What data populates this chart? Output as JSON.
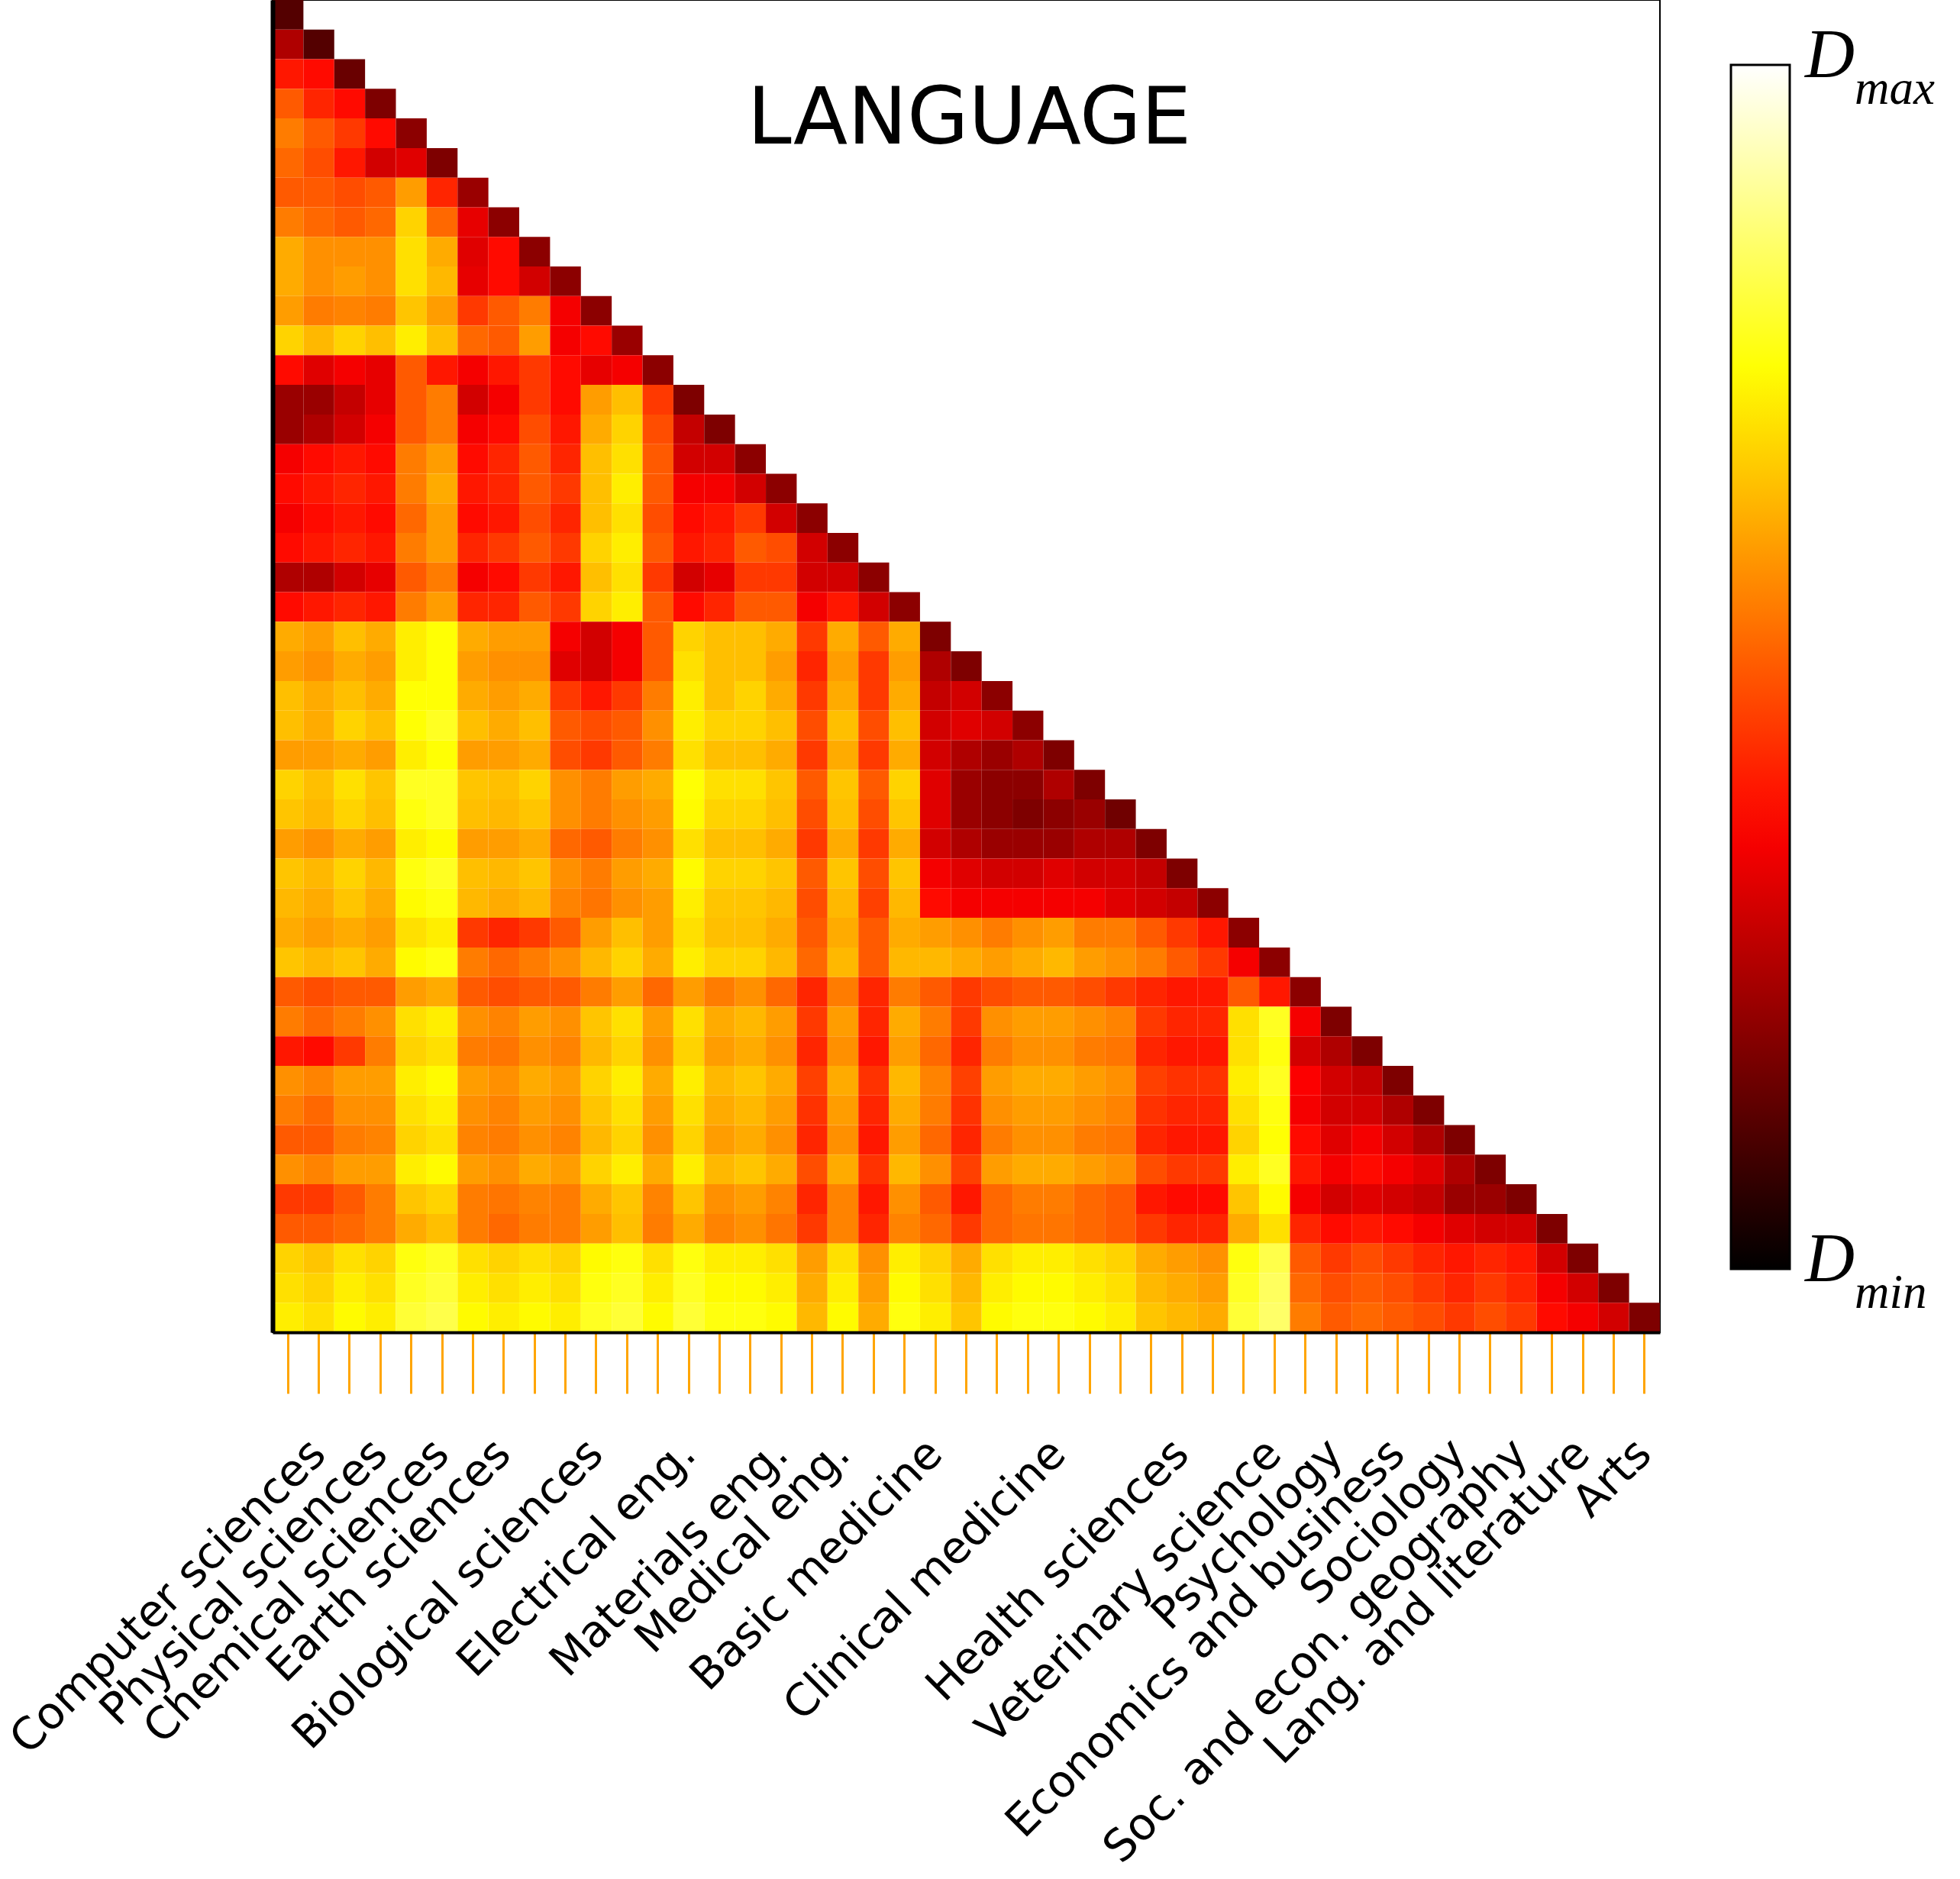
{
  "chart_data": {
    "type": "heatmap",
    "title": "LANGUAGE",
    "categories": [
      null,
      "Computer sciences",
      null,
      "Physical sciences",
      null,
      "Chemical sciences",
      null,
      "Earth sciences",
      null,
      null,
      "Biological sciences",
      null,
      null,
      "Electrical eng.",
      null,
      null,
      "Materials eng.",
      null,
      "Medical eng.",
      null,
      null,
      "Basic medicine",
      null,
      null,
      null,
      "Clinical medicine",
      null,
      null,
      null,
      "Health sciences",
      null,
      null,
      "Veterinary science",
      null,
      "Psychology",
      null,
      "Economics and business",
      null,
      "Sociology",
      null,
      "Soc. and econ. geography",
      null,
      "Lang. and literature",
      null,
      "Arts"
    ],
    "y_categories": [
      null,
      null,
      null,
      null,
      null,
      null,
      null,
      null,
      null,
      null,
      null,
      null,
      null,
      null,
      null,
      null,
      null,
      null,
      null,
      null,
      null,
      null,
      null,
      null,
      null,
      null,
      null,
      null,
      null,
      null,
      null,
      null,
      null,
      null,
      null,
      null,
      null,
      null,
      null,
      null,
      null,
      null,
      null,
      null,
      null
    ],
    "cells": [
      [
        0.12,
        null,
        null,
        null,
        null,
        null,
        null,
        null,
        null,
        null,
        null,
        null,
        null,
        null,
        null,
        null,
        null,
        null,
        null,
        null,
        null,
        null,
        null,
        null,
        null,
        null,
        null,
        null,
        null,
        null,
        null,
        null,
        null,
        null,
        null,
        null,
        null,
        null,
        null,
        null,
        null,
        null,
        null,
        null,
        null
      ],
      [
        0.25,
        0.12,
        null,
        null,
        null,
        null,
        null,
        null,
        null,
        null,
        null,
        null,
        null,
        null,
        null,
        null,
        null,
        null,
        null,
        null,
        null,
        null,
        null,
        null,
        null,
        null,
        null,
        null,
        null,
        null,
        null,
        null,
        null,
        null,
        null,
        null,
        null,
        null,
        null,
        null,
        null,
        null,
        null,
        null,
        null
      ],
      [
        0.4,
        0.38,
        0.15,
        null,
        null,
        null,
        null,
        null,
        null,
        null,
        null,
        null,
        null,
        null,
        null,
        null,
        null,
        null,
        null,
        null,
        null,
        null,
        null,
        null,
        null,
        null,
        null,
        null,
        null,
        null,
        null,
        null,
        null,
        null,
        null,
        null,
        null,
        null,
        null,
        null,
        null,
        null,
        null,
        null,
        null
      ],
      [
        0.5,
        0.42,
        0.38,
        0.18,
        null,
        null,
        null,
        null,
        null,
        null,
        null,
        null,
        null,
        null,
        null,
        null,
        null,
        null,
        null,
        null,
        null,
        null,
        null,
        null,
        null,
        null,
        null,
        null,
        null,
        null,
        null,
        null,
        null,
        null,
        null,
        null,
        null,
        null,
        null,
        null,
        null,
        null,
        null,
        null,
        null
      ],
      [
        0.55,
        0.5,
        0.45,
        0.38,
        0.2,
        null,
        null,
        null,
        null,
        null,
        null,
        null,
        null,
        null,
        null,
        null,
        null,
        null,
        null,
        null,
        null,
        null,
        null,
        null,
        null,
        null,
        null,
        null,
        null,
        null,
        null,
        null,
        null,
        null,
        null,
        null,
        null,
        null,
        null,
        null,
        null,
        null,
        null,
        null,
        null
      ],
      [
        0.52,
        0.48,
        0.4,
        0.3,
        0.32,
        0.18,
        null,
        null,
        null,
        null,
        null,
        null,
        null,
        null,
        null,
        null,
        null,
        null,
        null,
        null,
        null,
        null,
        null,
        null,
        null,
        null,
        null,
        null,
        null,
        null,
        null,
        null,
        null,
        null,
        null,
        null,
        null,
        null,
        null,
        null,
        null,
        null,
        null,
        null,
        null
      ],
      [
        0.5,
        0.5,
        0.48,
        0.5,
        0.6,
        0.42,
        0.22,
        null,
        null,
        null,
        null,
        null,
        null,
        null,
        null,
        null,
        null,
        null,
        null,
        null,
        null,
        null,
        null,
        null,
        null,
        null,
        null,
        null,
        null,
        null,
        null,
        null,
        null,
        null,
        null,
        null,
        null,
        null,
        null,
        null,
        null,
        null,
        null,
        null,
        null
      ],
      [
        0.55,
        0.52,
        0.5,
        0.52,
        0.68,
        0.52,
        0.33,
        0.2,
        null,
        null,
        null,
        null,
        null,
        null,
        null,
        null,
        null,
        null,
        null,
        null,
        null,
        null,
        null,
        null,
        null,
        null,
        null,
        null,
        null,
        null,
        null,
        null,
        null,
        null,
        null,
        null,
        null,
        null,
        null,
        null,
        null,
        null,
        null,
        null,
        null
      ],
      [
        0.62,
        0.58,
        0.58,
        0.58,
        0.7,
        0.62,
        0.32,
        0.38,
        0.2,
        null,
        null,
        null,
        null,
        null,
        null,
        null,
        null,
        null,
        null,
        null,
        null,
        null,
        null,
        null,
        null,
        null,
        null,
        null,
        null,
        null,
        null,
        null,
        null,
        null,
        null,
        null,
        null,
        null,
        null,
        null,
        null,
        null,
        null,
        null,
        null
      ],
      [
        0.62,
        0.58,
        0.6,
        0.58,
        0.7,
        0.64,
        0.33,
        0.38,
        0.3,
        0.2,
        null,
        null,
        null,
        null,
        null,
        null,
        null,
        null,
        null,
        null,
        null,
        null,
        null,
        null,
        null,
        null,
        null,
        null,
        null,
        null,
        null,
        null,
        null,
        null,
        null,
        null,
        null,
        null,
        null,
        null,
        null,
        null,
        null,
        null,
        null
      ],
      [
        0.6,
        0.55,
        0.56,
        0.55,
        0.66,
        0.6,
        0.45,
        0.5,
        0.55,
        0.35,
        0.2,
        null,
        null,
        null,
        null,
        null,
        null,
        null,
        null,
        null,
        null,
        null,
        null,
        null,
        null,
        null,
        null,
        null,
        null,
        null,
        null,
        null,
        null,
        null,
        null,
        null,
        null,
        null,
        null,
        null,
        null,
        null,
        null,
        null,
        null
      ],
      [
        0.68,
        0.64,
        0.68,
        0.65,
        0.72,
        0.65,
        0.52,
        0.5,
        0.6,
        0.35,
        0.38,
        0.22,
        null,
        null,
        null,
        null,
        null,
        null,
        null,
        null,
        null,
        null,
        null,
        null,
        null,
        null,
        null,
        null,
        null,
        null,
        null,
        null,
        null,
        null,
        null,
        null,
        null,
        null,
        null,
        null,
        null,
        null,
        null,
        null,
        null
      ],
      [
        0.38,
        0.32,
        0.35,
        0.33,
        0.5,
        0.4,
        0.35,
        0.4,
        0.45,
        0.38,
        0.33,
        0.35,
        0.2,
        null,
        null,
        null,
        null,
        null,
        null,
        null,
        null,
        null,
        null,
        null,
        null,
        null,
        null,
        null,
        null,
        null,
        null,
        null,
        null,
        null,
        null,
        null,
        null,
        null,
        null,
        null,
        null,
        null,
        null,
        null,
        null
      ],
      [
        0.22,
        0.22,
        0.28,
        0.33,
        0.5,
        0.55,
        0.3,
        0.35,
        0.45,
        0.38,
        0.6,
        0.65,
        0.45,
        0.18,
        null,
        null,
        null,
        null,
        null,
        null,
        null,
        null,
        null,
        null,
        null,
        null,
        null,
        null,
        null,
        null,
        null,
        null,
        null,
        null,
        null,
        null,
        null,
        null,
        null,
        null,
        null,
        null,
        null,
        null,
        null
      ],
      [
        0.22,
        0.25,
        0.3,
        0.35,
        0.5,
        0.55,
        0.35,
        0.38,
        0.48,
        0.4,
        0.62,
        0.68,
        0.48,
        0.28,
        0.18,
        null,
        null,
        null,
        null,
        null,
        null,
        null,
        null,
        null,
        null,
        null,
        null,
        null,
        null,
        null,
        null,
        null,
        null,
        null,
        null,
        null,
        null,
        null,
        null,
        null,
        null,
        null,
        null,
        null,
        null
      ],
      [
        0.35,
        0.38,
        0.4,
        0.38,
        0.55,
        0.6,
        0.38,
        0.42,
        0.5,
        0.42,
        0.65,
        0.7,
        0.5,
        0.3,
        0.3,
        0.2,
        null,
        null,
        null,
        null,
        null,
        null,
        null,
        null,
        null,
        null,
        null,
        null,
        null,
        null,
        null,
        null,
        null,
        null,
        null,
        null,
        null,
        null,
        null,
        null,
        null,
        null,
        null,
        null,
        null
      ],
      [
        0.38,
        0.4,
        0.42,
        0.4,
        0.55,
        0.62,
        0.4,
        0.42,
        0.5,
        0.45,
        0.65,
        0.72,
        0.5,
        0.35,
        0.35,
        0.3,
        0.2,
        null,
        null,
        null,
        null,
        null,
        null,
        null,
        null,
        null,
        null,
        null,
        null,
        null,
        null,
        null,
        null,
        null,
        null,
        null,
        null,
        null,
        null,
        null,
        null,
        null,
        null,
        null,
        null
      ],
      [
        0.35,
        0.38,
        0.4,
        0.38,
        0.52,
        0.6,
        0.38,
        0.4,
        0.48,
        0.42,
        0.65,
        0.7,
        0.48,
        0.38,
        0.4,
        0.45,
        0.3,
        0.2,
        null,
        null,
        null,
        null,
        null,
        null,
        null,
        null,
        null,
        null,
        null,
        null,
        null,
        null,
        null,
        null,
        null,
        null,
        null,
        null,
        null,
        null,
        null,
        null,
        null,
        null,
        null
      ],
      [
        0.38,
        0.4,
        0.42,
        0.4,
        0.55,
        0.6,
        0.42,
        0.45,
        0.5,
        0.45,
        0.68,
        0.72,
        0.5,
        0.4,
        0.42,
        0.5,
        0.48,
        0.3,
        0.2,
        null,
        null,
        null,
        null,
        null,
        null,
        null,
        null,
        null,
        null,
        null,
        null,
        null,
        null,
        null,
        null,
        null,
        null,
        null,
        null,
        null,
        null,
        null,
        null,
        null,
        null
      ],
      [
        0.25,
        0.25,
        0.3,
        0.33,
        0.5,
        0.55,
        0.35,
        0.38,
        0.45,
        0.4,
        0.65,
        0.7,
        0.45,
        0.3,
        0.33,
        0.45,
        0.45,
        0.3,
        0.3,
        0.2,
        null,
        null,
        null,
        null,
        null,
        null,
        null,
        null,
        null,
        null,
        null,
        null,
        null,
        null,
        null,
        null,
        null,
        null,
        null,
        null,
        null,
        null,
        null,
        null,
        null
      ],
      [
        0.38,
        0.4,
        0.42,
        0.4,
        0.55,
        0.6,
        0.42,
        0.42,
        0.5,
        0.45,
        0.68,
        0.72,
        0.5,
        0.38,
        0.42,
        0.5,
        0.5,
        0.35,
        0.4,
        0.3,
        0.2,
        null,
        null,
        null,
        null,
        null,
        null,
        null,
        null,
        null,
        null,
        null,
        null,
        null,
        null,
        null,
        null,
        null,
        null,
        null,
        null,
        null,
        null,
        null,
        null
      ],
      [
        0.62,
        0.6,
        0.65,
        0.62,
        0.72,
        0.75,
        0.62,
        0.6,
        0.6,
        0.35,
        0.3,
        0.35,
        0.5,
        0.68,
        0.65,
        0.65,
        0.62,
        0.45,
        0.62,
        0.5,
        0.62,
        0.18,
        null,
        null,
        null,
        null,
        null,
        null,
        null,
        null,
        null,
        null,
        null,
        null,
        null,
        null,
        null,
        null,
        null,
        null,
        null,
        null,
        null,
        null,
        null
      ],
      [
        0.6,
        0.58,
        0.62,
        0.6,
        0.72,
        0.75,
        0.6,
        0.58,
        0.58,
        0.32,
        0.3,
        0.35,
        0.5,
        0.7,
        0.65,
        0.65,
        0.6,
        0.42,
        0.6,
        0.45,
        0.6,
        0.25,
        0.18,
        null,
        null,
        null,
        null,
        null,
        null,
        null,
        null,
        null,
        null,
        null,
        null,
        null,
        null,
        null,
        null,
        null,
        null,
        null,
        null,
        null,
        null
      ],
      [
        0.65,
        0.62,
        0.65,
        0.62,
        0.75,
        0.75,
        0.62,
        0.6,
        0.62,
        0.45,
        0.4,
        0.45,
        0.55,
        0.72,
        0.65,
        0.68,
        0.62,
        0.45,
        0.62,
        0.45,
        0.62,
        0.28,
        0.3,
        0.2,
        null,
        null,
        null,
        null,
        null,
        null,
        null,
        null,
        null,
        null,
        null,
        null,
        null,
        null,
        null,
        null,
        null,
        null,
        null,
        null,
        null
      ],
      [
        0.65,
        0.62,
        0.68,
        0.65,
        0.75,
        0.78,
        0.65,
        0.62,
        0.65,
        0.5,
        0.48,
        0.5,
        0.58,
        0.72,
        0.68,
        0.68,
        0.65,
        0.48,
        0.65,
        0.48,
        0.65,
        0.3,
        0.32,
        0.3,
        0.2,
        null,
        null,
        null,
        null,
        null,
        null,
        null,
        null,
        null,
        null,
        null,
        null,
        null,
        null,
        null,
        null,
        null,
        null,
        null,
        null
      ],
      [
        0.6,
        0.6,
        0.62,
        0.6,
        0.72,
        0.75,
        0.6,
        0.6,
        0.62,
        0.48,
        0.45,
        0.5,
        0.55,
        0.7,
        0.65,
        0.65,
        0.62,
        0.45,
        0.62,
        0.45,
        0.62,
        0.3,
        0.25,
        0.22,
        0.25,
        0.18,
        null,
        null,
        null,
        null,
        null,
        null,
        null,
        null,
        null,
        null,
        null,
        null,
        null,
        null,
        null,
        null,
        null,
        null,
        null
      ],
      [
        0.68,
        0.65,
        0.7,
        0.66,
        0.78,
        0.78,
        0.66,
        0.65,
        0.68,
        0.58,
        0.55,
        0.6,
        0.62,
        0.75,
        0.7,
        0.7,
        0.66,
        0.5,
        0.66,
        0.5,
        0.68,
        0.32,
        0.22,
        0.2,
        0.2,
        0.25,
        0.18,
        null,
        null,
        null,
        null,
        null,
        null,
        null,
        null,
        null,
        null,
        null,
        null,
        null,
        null,
        null,
        null,
        null,
        null
      ],
      [
        0.66,
        0.64,
        0.68,
        0.65,
        0.76,
        0.78,
        0.65,
        0.64,
        0.66,
        0.58,
        0.55,
        0.58,
        0.6,
        0.74,
        0.68,
        0.68,
        0.65,
        0.48,
        0.65,
        0.48,
        0.66,
        0.32,
        0.22,
        0.2,
        0.18,
        0.2,
        0.22,
        0.16,
        null,
        null,
        null,
        null,
        null,
        null,
        null,
        null,
        null,
        null,
        null,
        null,
        null,
        null,
        null,
        null,
        null
      ],
      [
        0.6,
        0.58,
        0.62,
        0.6,
        0.72,
        0.74,
        0.6,
        0.6,
        0.62,
        0.52,
        0.5,
        0.55,
        0.58,
        0.7,
        0.65,
        0.65,
        0.62,
        0.45,
        0.62,
        0.45,
        0.62,
        0.3,
        0.25,
        0.22,
        0.22,
        0.22,
        0.25,
        0.25,
        0.18,
        null,
        null,
        null,
        null,
        null,
        null,
        null,
        null,
        null,
        null,
        null,
        null,
        null,
        null,
        null,
        null
      ],
      [
        0.66,
        0.64,
        0.68,
        0.64,
        0.76,
        0.78,
        0.65,
        0.64,
        0.66,
        0.58,
        0.55,
        0.6,
        0.62,
        0.74,
        0.68,
        0.68,
        0.66,
        0.5,
        0.66,
        0.48,
        0.66,
        0.35,
        0.32,
        0.3,
        0.3,
        0.32,
        0.3,
        0.3,
        0.28,
        0.18,
        null,
        null,
        null,
        null,
        null,
        null,
        null,
        null,
        null,
        null,
        null,
        null,
        null,
        null,
        null
      ],
      [
        0.64,
        0.62,
        0.66,
        0.62,
        0.74,
        0.76,
        0.64,
        0.62,
        0.64,
        0.56,
        0.54,
        0.58,
        0.6,
        0.72,
        0.66,
        0.66,
        0.64,
        0.48,
        0.64,
        0.46,
        0.64,
        0.38,
        0.35,
        0.35,
        0.35,
        0.35,
        0.35,
        0.32,
        0.3,
        0.28,
        0.2,
        null,
        null,
        null,
        null,
        null,
        null,
        null,
        null,
        null,
        null,
        null,
        null,
        null,
        null
      ],
      [
        0.62,
        0.6,
        0.62,
        0.6,
        0.7,
        0.72,
        0.45,
        0.42,
        0.45,
        0.5,
        0.6,
        0.65,
        0.6,
        0.7,
        0.65,
        0.65,
        0.62,
        0.5,
        0.62,
        0.5,
        0.62,
        0.6,
        0.58,
        0.55,
        0.58,
        0.6,
        0.55,
        0.55,
        0.5,
        0.45,
        0.4,
        0.2,
        null,
        null,
        null,
        null,
        null,
        null,
        null,
        null,
        null,
        null,
        null,
        null,
        null
      ],
      [
        0.66,
        0.64,
        0.66,
        0.62,
        0.74,
        0.76,
        0.55,
        0.52,
        0.55,
        0.58,
        0.64,
        0.68,
        0.62,
        0.72,
        0.68,
        0.68,
        0.64,
        0.52,
        0.64,
        0.5,
        0.64,
        0.64,
        0.62,
        0.6,
        0.62,
        0.64,
        0.6,
        0.58,
        0.55,
        0.5,
        0.45,
        0.35,
        0.2,
        null,
        null,
        null,
        null,
        null,
        null,
        null,
        null,
        null,
        null,
        null,
        null
      ],
      [
        0.5,
        0.48,
        0.5,
        0.5,
        0.6,
        0.62,
        0.5,
        0.48,
        0.5,
        0.5,
        0.55,
        0.6,
        0.52,
        0.6,
        0.55,
        0.58,
        0.52,
        0.42,
        0.55,
        0.42,
        0.55,
        0.5,
        0.45,
        0.48,
        0.5,
        0.5,
        0.48,
        0.45,
        0.42,
        0.4,
        0.4,
        0.5,
        0.4,
        0.2,
        null,
        null,
        null,
        null,
        null,
        null,
        null,
        null,
        null,
        null,
        null
      ],
      [
        0.55,
        0.52,
        0.55,
        0.58,
        0.7,
        0.72,
        0.58,
        0.56,
        0.6,
        0.58,
        0.66,
        0.7,
        0.6,
        0.7,
        0.62,
        0.64,
        0.6,
        0.45,
        0.6,
        0.42,
        0.62,
        0.55,
        0.45,
        0.58,
        0.6,
        0.6,
        0.58,
        0.56,
        0.45,
        0.42,
        0.42,
        0.7,
        0.78,
        0.35,
        0.18,
        null,
        null,
        null,
        null,
        null,
        null,
        null,
        null,
        null,
        null
      ],
      [
        0.4,
        0.38,
        0.45,
        0.55,
        0.68,
        0.7,
        0.55,
        0.54,
        0.58,
        0.56,
        0.64,
        0.68,
        0.58,
        0.68,
        0.6,
        0.62,
        0.58,
        0.42,
        0.58,
        0.4,
        0.6,
        0.52,
        0.42,
        0.55,
        0.58,
        0.58,
        0.55,
        0.54,
        0.42,
        0.4,
        0.4,
        0.7,
        0.76,
        0.3,
        0.25,
        0.18,
        null,
        null,
        null,
        null,
        null,
        null,
        null,
        null,
        null
      ],
      [
        0.58,
        0.56,
        0.6,
        0.6,
        0.72,
        0.74,
        0.6,
        0.58,
        0.62,
        0.6,
        0.68,
        0.72,
        0.62,
        0.72,
        0.64,
        0.66,
        0.62,
        0.46,
        0.62,
        0.44,
        0.64,
        0.56,
        0.46,
        0.6,
        0.62,
        0.62,
        0.6,
        0.58,
        0.46,
        0.44,
        0.44,
        0.72,
        0.78,
        0.36,
        0.3,
        0.28,
        0.18,
        null,
        null,
        null,
        null,
        null,
        null,
        null,
        null
      ],
      [
        0.55,
        0.52,
        0.58,
        0.58,
        0.7,
        0.72,
        0.58,
        0.56,
        0.6,
        0.58,
        0.66,
        0.7,
        0.6,
        0.7,
        0.62,
        0.64,
        0.6,
        0.44,
        0.6,
        0.42,
        0.62,
        0.55,
        0.44,
        0.58,
        0.6,
        0.6,
        0.58,
        0.56,
        0.44,
        0.42,
        0.42,
        0.7,
        0.76,
        0.35,
        0.3,
        0.3,
        0.25,
        0.18,
        null,
        null,
        null,
        null,
        null,
        null,
        null
      ],
      [
        0.5,
        0.5,
        0.55,
        0.56,
        0.68,
        0.7,
        0.56,
        0.55,
        0.58,
        0.56,
        0.64,
        0.68,
        0.58,
        0.68,
        0.6,
        0.62,
        0.58,
        0.42,
        0.58,
        0.4,
        0.6,
        0.52,
        0.42,
        0.55,
        0.58,
        0.58,
        0.55,
        0.54,
        0.42,
        0.4,
        0.4,
        0.68,
        0.75,
        0.38,
        0.32,
        0.35,
        0.3,
        0.25,
        0.18,
        null,
        null,
        null,
        null,
        null,
        null
      ],
      [
        0.58,
        0.56,
        0.6,
        0.6,
        0.72,
        0.74,
        0.6,
        0.58,
        0.62,
        0.6,
        0.68,
        0.72,
        0.62,
        0.72,
        0.64,
        0.66,
        0.62,
        0.48,
        0.62,
        0.44,
        0.64,
        0.58,
        0.46,
        0.6,
        0.62,
        0.62,
        0.6,
        0.58,
        0.48,
        0.45,
        0.45,
        0.72,
        0.78,
        0.4,
        0.35,
        0.38,
        0.35,
        0.32,
        0.25,
        0.18,
        null,
        null,
        null,
        null,
        null
      ],
      [
        0.45,
        0.45,
        0.5,
        0.55,
        0.66,
        0.68,
        0.55,
        0.54,
        0.56,
        0.55,
        0.62,
        0.66,
        0.56,
        0.66,
        0.58,
        0.6,
        0.56,
        0.42,
        0.56,
        0.4,
        0.58,
        0.5,
        0.4,
        0.52,
        0.55,
        0.55,
        0.52,
        0.5,
        0.4,
        0.38,
        0.38,
        0.66,
        0.74,
        0.35,
        0.3,
        0.32,
        0.3,
        0.28,
        0.22,
        0.22,
        0.18,
        null,
        null,
        null,
        null
      ],
      [
        0.5,
        0.5,
        0.52,
        0.55,
        0.62,
        0.65,
        0.55,
        0.52,
        0.55,
        0.55,
        0.6,
        0.65,
        0.55,
        0.62,
        0.56,
        0.58,
        0.54,
        0.45,
        0.56,
        0.42,
        0.56,
        0.52,
        0.45,
        0.52,
        0.54,
        0.54,
        0.52,
        0.5,
        0.45,
        0.42,
        0.42,
        0.62,
        0.7,
        0.42,
        0.38,
        0.4,
        0.38,
        0.35,
        0.32,
        0.3,
        0.3,
        0.18,
        null,
        null,
        null
      ],
      [
        0.68,
        0.66,
        0.7,
        0.68,
        0.76,
        0.78,
        0.7,
        0.68,
        0.7,
        0.68,
        0.74,
        0.76,
        0.7,
        0.76,
        0.72,
        0.72,
        0.7,
        0.6,
        0.7,
        0.58,
        0.72,
        0.68,
        0.62,
        0.7,
        0.72,
        0.72,
        0.7,
        0.68,
        0.62,
        0.6,
        0.58,
        0.76,
        0.82,
        0.5,
        0.45,
        0.48,
        0.45,
        0.42,
        0.4,
        0.42,
        0.4,
        0.3,
        0.18,
        null,
        null
      ],
      [
        0.7,
        0.68,
        0.72,
        0.7,
        0.78,
        0.8,
        0.72,
        0.7,
        0.72,
        0.7,
        0.76,
        0.78,
        0.72,
        0.78,
        0.74,
        0.74,
        0.72,
        0.62,
        0.72,
        0.6,
        0.74,
        0.7,
        0.64,
        0.72,
        0.74,
        0.74,
        0.72,
        0.7,
        0.64,
        0.62,
        0.6,
        0.78,
        0.84,
        0.52,
        0.48,
        0.5,
        0.48,
        0.45,
        0.42,
        0.45,
        0.42,
        0.35,
        0.3,
        0.18,
        null
      ],
      [
        0.72,
        0.7,
        0.74,
        0.72,
        0.8,
        0.82,
        0.74,
        0.72,
        0.74,
        0.72,
        0.78,
        0.8,
        0.74,
        0.8,
        0.76,
        0.76,
        0.74,
        0.64,
        0.74,
        0.62,
        0.76,
        0.72,
        0.66,
        0.74,
        0.76,
        0.76,
        0.74,
        0.72,
        0.66,
        0.64,
        0.62,
        0.8,
        0.85,
        0.55,
        0.5,
        0.52,
        0.5,
        0.48,
        0.45,
        0.48,
        0.45,
        0.38,
        0.35,
        0.3,
        0.18
      ]
    ],
    "clim": [
      0,
      1
    ],
    "cticks": [
      {
        "value": 0,
        "label": "D$_{min}$"
      },
      {
        "value": 1,
        "label": "D$_{max}$"
      }
    ],
    "tick_labels": "x"
  }
}
